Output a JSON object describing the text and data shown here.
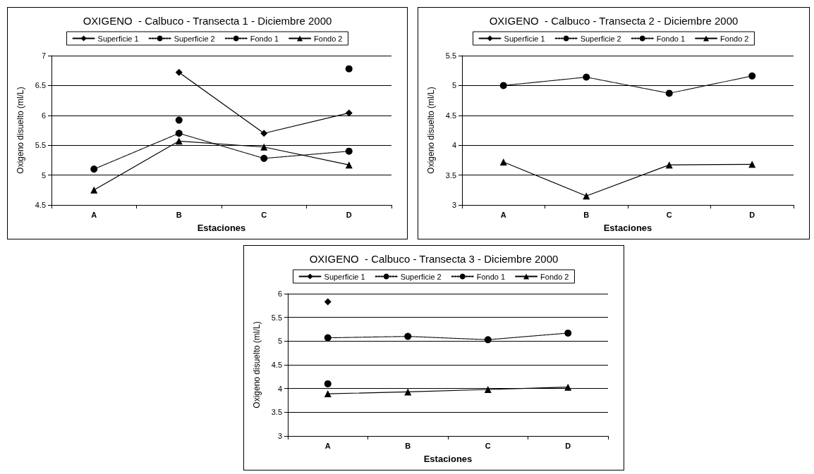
{
  "chart_data": [
    {
      "type": "line",
      "title": "OXIGENO  - Calbuco - Transecta 1 - Diciembre 2000",
      "xlabel": "Estaciones",
      "ylabel": "Oxigeno disuelto (ml/L)",
      "categories": [
        "A",
        "B",
        "C",
        "D"
      ],
      "ylim": [
        4.5,
        7
      ],
      "yticks": [
        4.5,
        5,
        5.5,
        6,
        6.5,
        7
      ],
      "grid": "y",
      "legend": "top",
      "series": [
        {
          "name": "Superficie 1",
          "color": "#000000",
          "marker": "diamond",
          "line_style": "solid",
          "values": [
            null,
            6.72,
            5.7,
            6.04
          ]
        },
        {
          "name": "Superficie 2",
          "color": "#000000",
          "marker": "circle",
          "line_style": "dotted",
          "values": [
            5.1,
            5.7,
            5.28,
            5.4
          ]
        },
        {
          "name": "Fondo 1",
          "color": "#000000",
          "marker": "circle",
          "line_style": "dotted",
          "values": [
            null,
            5.92,
            null,
            6.78
          ]
        },
        {
          "name": "Fondo 2",
          "color": "#000000",
          "marker": "triangle",
          "line_style": "solid",
          "values": [
            4.75,
            5.57,
            5.47,
            5.17
          ]
        }
      ]
    },
    {
      "type": "line",
      "title": "OXIGENO  - Calbuco - Transecta 2 - Diciembre 2000",
      "xlabel": "Estaciones",
      "ylabel": "Oxigeno disuelto (ml/L)",
      "categories": [
        "A",
        "B",
        "C",
        "D"
      ],
      "ylim": [
        3,
        5.5
      ],
      "yticks": [
        3,
        3.5,
        4,
        4.5,
        5,
        5.5
      ],
      "grid": "y",
      "legend": "top",
      "series": [
        {
          "name": "Superficie 1",
          "color": "#000000",
          "marker": "diamond",
          "line_style": "solid",
          "values": [
            null,
            null,
            null,
            null
          ]
        },
        {
          "name": "Superficie 2",
          "color": "#000000",
          "marker": "circle",
          "line_style": "dotted",
          "values": [
            5.0,
            5.14,
            4.87,
            5.16
          ]
        },
        {
          "name": "Fondo 1",
          "color": "#000000",
          "marker": "circle",
          "line_style": "dotted",
          "values": [
            null,
            null,
            null,
            null
          ]
        },
        {
          "name": "Fondo 2",
          "color": "#000000",
          "marker": "triangle",
          "line_style": "solid",
          "values": [
            3.72,
            3.15,
            3.67,
            3.68
          ]
        }
      ]
    },
    {
      "type": "line",
      "title": "OXIGENO  - Calbuco - Transecta 3 - Diciembre 2000",
      "xlabel": "Estaciones",
      "ylabel": "Oxigeno disuelto (ml/L)",
      "categories": [
        "A",
        "B",
        "C",
        "D"
      ],
      "ylim": [
        3,
        6
      ],
      "yticks": [
        3,
        3.5,
        4,
        4.5,
        5,
        5.5,
        6
      ],
      "grid": "y",
      "legend": "top",
      "series": [
        {
          "name": "Superficie 1",
          "color": "#000000",
          "marker": "diamond",
          "line_style": "solid",
          "values": [
            5.83,
            null,
            null,
            null
          ]
        },
        {
          "name": "Superficie 2",
          "color": "#000000",
          "marker": "circle",
          "line_style": "dotted",
          "values": [
            5.07,
            5.1,
            5.03,
            5.17
          ]
        },
        {
          "name": "Fondo 1",
          "color": "#000000",
          "marker": "circle",
          "line_style": "dotted",
          "values": [
            4.1,
            null,
            null,
            null
          ]
        },
        {
          "name": "Fondo 2",
          "color": "#000000",
          "marker": "triangle",
          "line_style": "solid",
          "values": [
            3.89,
            3.93,
            3.98,
            4.03
          ]
        }
      ]
    }
  ]
}
